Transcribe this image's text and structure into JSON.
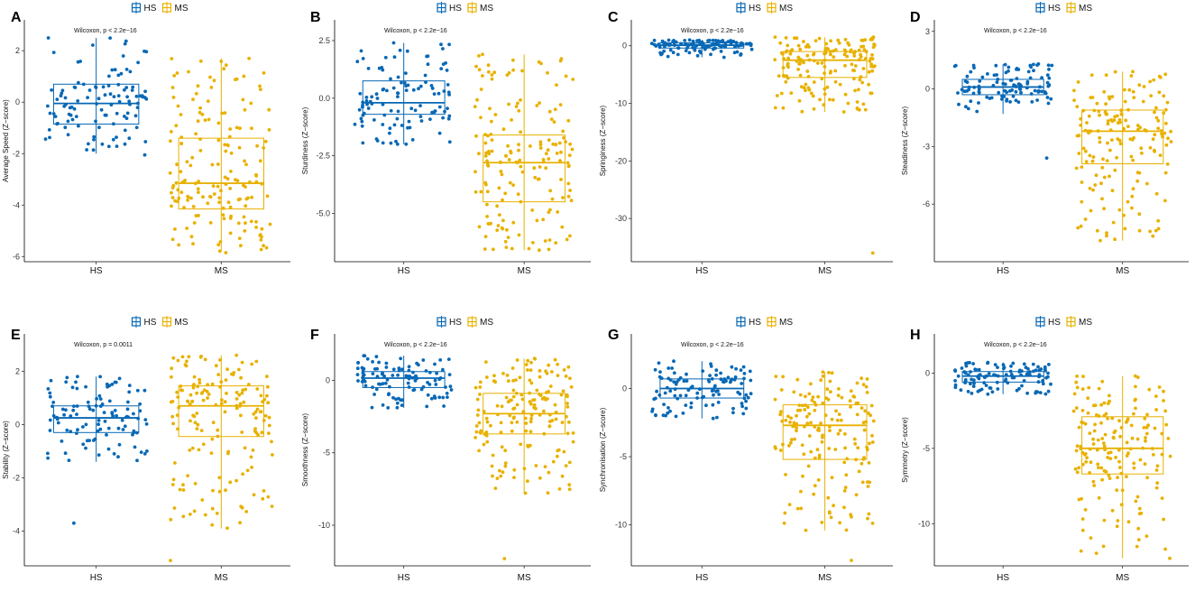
{
  "colors": {
    "HS": "#0868b5",
    "MS": "#e8b100"
  },
  "legend_items": [
    "HS",
    "MS"
  ],
  "chart_data": [
    {
      "type": "box",
      "panel": "A",
      "ylabel": "Average Speed (Z−score)",
      "annotation": "Wilcoxon, p < 2.2e−16",
      "ylim": [
        -6.2,
        3.2
      ],
      "ticks": [
        -6,
        -4,
        -2,
        0,
        2
      ],
      "tick_labels": [
        "-6",
        "-4",
        "-2",
        "0",
        "2"
      ],
      "categories": [
        "HS",
        "MS"
      ],
      "groups": [
        {
          "name": "HS",
          "n": 110,
          "q1": -0.85,
          "median": -0.05,
          "q3": 0.7,
          "whisker_low": -2.0,
          "whisker_high": 2.5,
          "min": -2.05,
          "max": 2.5
        },
        {
          "name": "MS",
          "n": 170,
          "q1": -4.15,
          "median": -3.15,
          "q3": -1.4,
          "whisker_low": -5.8,
          "whisker_high": 1.7,
          "min": -5.85,
          "max": 1.7
        }
      ]
    },
    {
      "type": "box",
      "panel": "B",
      "ylabel": "Sturdiness (Z−score)",
      "annotation": "Wilcoxon, p < 2.2e−16",
      "ylim": [
        -7.1,
        3.4
      ],
      "ticks": [
        -5,
        -2.5,
        0,
        2.5
      ],
      "tick_labels": [
        "-5.0",
        "-2.5",
        "0.0",
        "2.5"
      ],
      "categories": [
        "HS",
        "MS"
      ],
      "groups": [
        {
          "name": "HS",
          "n": 110,
          "q1": -0.7,
          "median": -0.2,
          "q3": 0.75,
          "whisker_low": -2.0,
          "whisker_high": 2.4,
          "min": -2.0,
          "max": 2.4
        },
        {
          "name": "MS",
          "n": 170,
          "q1": -4.5,
          "median": -2.8,
          "q3": -1.6,
          "whisker_low": -6.6,
          "whisker_high": 1.9,
          "min": -6.6,
          "max": 1.9
        }
      ]
    },
    {
      "type": "box",
      "panel": "C",
      "ylabel": "Springiness (Z−score)",
      "annotation": "Wilcoxon, p < 2.2e−16",
      "ylim": [
        -37.5,
        4.5
      ],
      "ticks": [
        -30,
        -20,
        -10,
        0
      ],
      "tick_labels": [
        "-30",
        "-20",
        "-10",
        "0"
      ],
      "categories": [
        "HS",
        "MS"
      ],
      "groups": [
        {
          "name": "HS",
          "n": 110,
          "q1": -0.4,
          "median": 0.1,
          "q3": 0.5,
          "whisker_low": -2.0,
          "whisker_high": 1.0,
          "min": -2.0,
          "max": 1.0
        },
        {
          "name": "MS",
          "n": 170,
          "q1": -5.5,
          "median": -2.5,
          "q3": -1.0,
          "whisker_low": -11.5,
          "whisker_high": 1.5,
          "min": -36.0,
          "max": 1.5
        }
      ]
    },
    {
      "type": "box",
      "panel": "D",
      "ylabel": "Steadiness (Z−score)",
      "annotation": "Wilcoxon, p < 2.2e−16",
      "ylim": [
        -9.0,
        3.6
      ],
      "ticks": [
        -6,
        -3,
        0,
        3
      ],
      "tick_labels": [
        "-6",
        "-3",
        "0",
        "3"
      ],
      "categories": [
        "HS",
        "MS"
      ],
      "groups": [
        {
          "name": "HS",
          "n": 110,
          "q1": -0.3,
          "median": 0.1,
          "q3": 0.5,
          "whisker_low": -1.3,
          "whisker_high": 1.3,
          "min": -3.6,
          "max": 1.3
        },
        {
          "name": "MS",
          "n": 170,
          "q1": -3.9,
          "median": -2.2,
          "q3": -1.1,
          "whisker_low": -7.9,
          "whisker_high": 0.9,
          "min": -7.9,
          "max": 0.9
        }
      ]
    },
    {
      "type": "box",
      "panel": "E",
      "ylabel": "Stability (Z−score)",
      "annotation": "Wilcoxon, p = 0.0011",
      "ylim": [
        -5.3,
        3.4
      ],
      "ticks": [
        -4,
        -2,
        0,
        2
      ],
      "tick_labels": [
        "-4",
        "-2",
        "0",
        "2"
      ],
      "categories": [
        "HS",
        "MS"
      ],
      "groups": [
        {
          "name": "HS",
          "n": 110,
          "q1": -0.3,
          "median": 0.25,
          "q3": 0.7,
          "whisker_low": -1.4,
          "whisker_high": 1.8,
          "min": -3.7,
          "max": 1.8
        },
        {
          "name": "MS",
          "n": 170,
          "q1": -0.45,
          "median": 0.7,
          "q3": 1.45,
          "whisker_low": -3.9,
          "whisker_high": 2.6,
          "min": -5.1,
          "max": 2.6
        }
      ]
    },
    {
      "type": "box",
      "panel": "F",
      "ylabel": "Smoothness (Z−score)",
      "annotation": "Wilcoxon, p < 2.2e−16",
      "ylim": [
        -12.8,
        3.2
      ],
      "ticks": [
        -10,
        -5,
        0
      ],
      "tick_labels": [
        "-10",
        "-5",
        "0"
      ],
      "categories": [
        "HS",
        "MS"
      ],
      "groups": [
        {
          "name": "HS",
          "n": 110,
          "q1": -0.5,
          "median": 0.15,
          "q3": 0.6,
          "whisker_low": -1.9,
          "whisker_high": 1.7,
          "min": -1.9,
          "max": 1.7
        },
        {
          "name": "MS",
          "n": 170,
          "q1": -3.7,
          "median": -2.3,
          "q3": -0.9,
          "whisker_low": -7.8,
          "whisker_high": 1.5,
          "min": -12.3,
          "max": 1.5
        }
      ]
    },
    {
      "type": "box",
      "panel": "G",
      "ylabel": "Synchronisation (Z−score)",
      "annotation": "Wilcoxon, p < 2.2e−16",
      "ylim": [
        -13.0,
        4.0
      ],
      "ticks": [
        -10,
        -5,
        0
      ],
      "tick_labels": [
        "-10",
        "-5",
        "0"
      ],
      "categories": [
        "HS",
        "MS"
      ],
      "groups": [
        {
          "name": "HS",
          "n": 110,
          "q1": -0.7,
          "median": 0.0,
          "q3": 0.7,
          "whisker_low": -2.2,
          "whisker_high": 2.0,
          "min": -2.2,
          "max": 2.0
        },
        {
          "name": "MS",
          "n": 170,
          "q1": -5.2,
          "median": -2.7,
          "q3": -1.2,
          "whisker_low": -10.4,
          "whisker_high": 1.2,
          "min": -12.6,
          "max": 1.2
        }
      ]
    },
    {
      "type": "box",
      "panel": "H",
      "ylabel": "Symmetry (Z−score)",
      "annotation": "Wilcoxon, p < 2.2e−16",
      "ylim": [
        -12.8,
        2.6
      ],
      "ticks": [
        -10,
        -5,
        0
      ],
      "tick_labels": [
        "-10",
        "-5",
        "0"
      ],
      "categories": [
        "HS",
        "MS"
      ],
      "groups": [
        {
          "name": "HS",
          "n": 110,
          "q1": -0.6,
          "median": -0.2,
          "q3": 0.1,
          "whisker_low": -1.4,
          "whisker_high": 0.7,
          "min": -1.4,
          "max": 0.7
        },
        {
          "name": "MS",
          "n": 170,
          "q1": -6.7,
          "median": -5.0,
          "q3": -2.9,
          "whisker_low": -12.3,
          "whisker_high": -0.2,
          "min": -12.3,
          "max": -0.2
        }
      ]
    }
  ]
}
